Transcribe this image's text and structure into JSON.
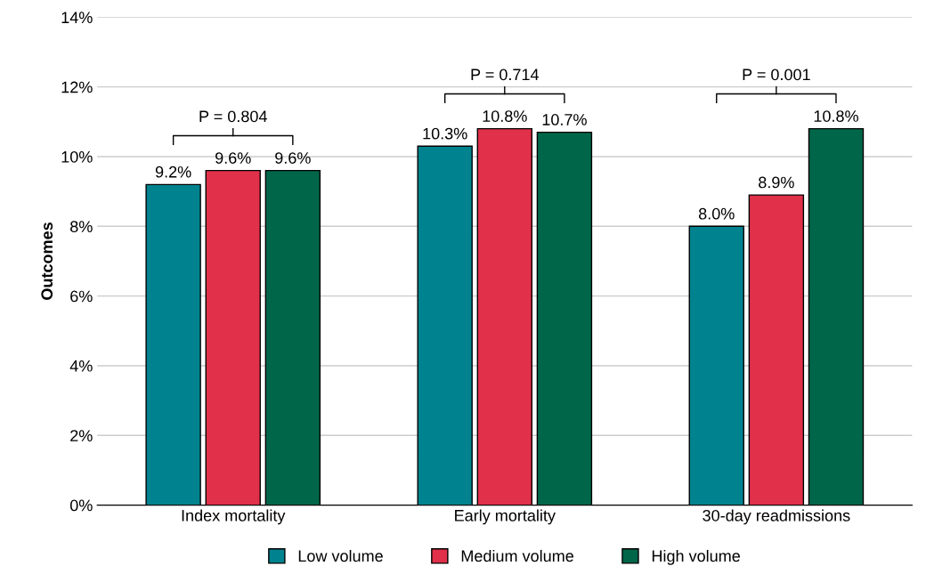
{
  "chart_data": {
    "type": "bar",
    "ylabel": "Outcomes",
    "categories": [
      "Index mortality",
      "Early mortality",
      "30-day readmissions"
    ],
    "series": [
      {
        "name": "Low volume",
        "color": "#00838f",
        "values": [
          9.2,
          10.3,
          8.0
        ],
        "value_labels": [
          "9.2%",
          "10.3%",
          "8.0%"
        ]
      },
      {
        "name": "Medium volume",
        "color": "#e0304a",
        "values": [
          9.6,
          10.8,
          8.9
        ],
        "value_labels": [
          "9.6%",
          "10.8%",
          "8.9%"
        ]
      },
      {
        "name": "High volume",
        "color": "#00664a",
        "values": [
          9.6,
          10.7,
          10.8
        ],
        "value_labels": [
          "9.6%",
          "10.7%",
          "10.8%"
        ]
      }
    ],
    "ylim": [
      0,
      14
    ],
    "yticks": [
      {
        "value": 0,
        "label": "0%"
      },
      {
        "value": 2,
        "label": "2%"
      },
      {
        "value": 4,
        "label": "4%"
      },
      {
        "value": 6,
        "label": "6%"
      },
      {
        "value": 8,
        "label": "8%"
      },
      {
        "value": 10,
        "label": "10%"
      },
      {
        "value": 12,
        "label": "12%"
      },
      {
        "value": 14,
        "label": "14%"
      }
    ],
    "annotations": [
      "P = 0.804",
      "P = 0.714",
      "P = 0.001"
    ],
    "grid": "y",
    "legend": "bottom"
  }
}
